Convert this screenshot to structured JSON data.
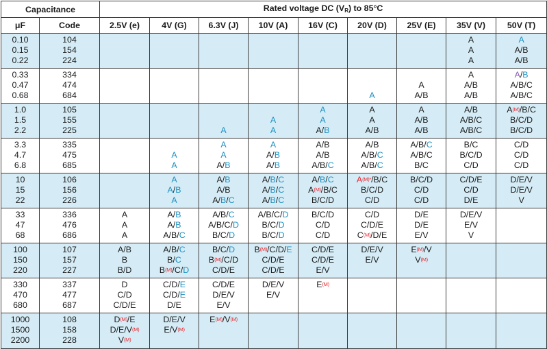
{
  "header": {
    "capacitance": "Capacitance",
    "rated_prefix": "Rated voltage DC (V",
    "rated_sub": "R",
    "rated_suffix": ") to 85°C",
    "uf": "μF",
    "code": "Code",
    "voltages": [
      "2.5V (e)",
      "4V (G)",
      "6.3V (J)",
      "10V (A)",
      "16V (C)",
      "20V (D)",
      "25V (E)",
      "35V (V)",
      "50V (T)"
    ]
  },
  "legend_colors": {
    "black": "#1a1a1a",
    "blue": "#1a90c2",
    "red": "#e8242c",
    "purple": "#8a5ab8",
    "band": "#d5ecf6"
  },
  "groups": [
    {
      "uf": [
        "0.10",
        "0.15",
        "0.22"
      ],
      "codes": [
        "104",
        "154",
        "224"
      ],
      "cols": [
        [],
        [],
        [],
        [],
        [],
        [],
        [],
        [
          "A",
          "A",
          "A"
        ],
        [
          "A",
          "A/B",
          "A/B"
        ]
      ]
    },
    {
      "uf": [
        "0.33",
        "0.47",
        "0.68"
      ],
      "codes": [
        "334",
        "474",
        "684"
      ],
      "cols": [
        [],
        [],
        [],
        [],
        [],
        [
          "",
          "",
          "A"
        ],
        [
          "",
          "A",
          "A/B"
        ],
        [
          "A",
          "A/B",
          "A/B"
        ],
        [
          "A/B",
          "A/B/C",
          "A/B/C"
        ]
      ]
    },
    {
      "uf": [
        "1.0",
        "1.5",
        "2.2"
      ],
      "codes": [
        "105",
        "155",
        "225"
      ],
      "cols": [
        [],
        [],
        [
          "",
          "",
          "A"
        ],
        [
          "",
          "A",
          "A"
        ],
        [
          "A",
          "A",
          "A/B"
        ],
        [
          "A",
          "A",
          "A/B"
        ],
        [
          "A",
          "A/B",
          "A/B"
        ],
        [
          "A/B",
          "A/B/C",
          "A/B/C"
        ],
        [
          "A(M)/B/C",
          "B/C/D",
          "B/C/D"
        ]
      ]
    },
    {
      "uf": [
        "3.3",
        "4.7",
        "6.8"
      ],
      "codes": [
        "335",
        "475",
        "685"
      ],
      "cols": [
        [],
        [
          "",
          "A",
          "A"
        ],
        [
          "A",
          "A",
          "A/B"
        ],
        [
          "A",
          "A/B",
          "A/B"
        ],
        [
          "A/B",
          "A/B",
          "A/B/C"
        ],
        [
          "A/B",
          "A/B/C",
          "A/B/C"
        ],
        [
          "A/B/C",
          "A/B/C",
          "B/C"
        ],
        [
          "B/C",
          "B/C/D",
          "C/D"
        ],
        [
          "C/D",
          "C/D",
          "C/D"
        ]
      ]
    },
    {
      "uf": [
        "10",
        "15",
        "22"
      ],
      "codes": [
        "106",
        "156",
        "226"
      ],
      "cols": [
        [],
        [
          "A",
          "A/B",
          "A"
        ],
        [
          "A/B",
          "A/B",
          "A/B/C"
        ],
        [
          "A/B/C",
          "A/B/C",
          "A/B/C"
        ],
        [
          "A/B/C",
          "A(M)/B/C",
          "B/C/D"
        ],
        [
          "A(M)*/B/C",
          "B/C/D",
          "C/D"
        ],
        [
          "B/C/D",
          "C/D",
          "C/D"
        ],
        [
          "C/D/E",
          "C/D",
          "D/E"
        ],
        [
          "D/E/V",
          "D/E/V",
          "V"
        ]
      ]
    },
    {
      "uf": [
        "33",
        "47",
        "68"
      ],
      "codes": [
        "336",
        "476",
        "686"
      ],
      "cols": [
        [
          "A",
          "A",
          "A"
        ],
        [
          "A/B",
          "A/B",
          "A/B/C"
        ],
        [
          "A/B/C",
          "A/B/C/D",
          "B/C/D"
        ],
        [
          "A/B/C/D",
          "B/C/D",
          "B/C/D"
        ],
        [
          "B/C/D",
          "C/D",
          "C/D"
        ],
        [
          "C/D",
          "C/D/E",
          "C(M)/D/E"
        ],
        [
          "D/E",
          "D/E",
          "E/V"
        ],
        [
          "D/E/V",
          "E/V",
          "V"
        ],
        []
      ]
    },
    {
      "uf": [
        "100",
        "150",
        "220"
      ],
      "codes": [
        "107",
        "157",
        "227"
      ],
      "cols": [
        [
          "A/B",
          "B",
          "B/D"
        ],
        [
          "A/B/C",
          "B/C",
          "B(M)/C/D"
        ],
        [
          "B/C/D",
          "B(M)/C/D",
          "C/D/E"
        ],
        [
          "B(M)/C/D/E",
          "C/D/E",
          "C/D/E"
        ],
        [
          "C/D/E",
          "C/D/E",
          "E/V"
        ],
        [
          "D/E/V",
          "E/V",
          ""
        ],
        [
          "E(M)/V",
          "V(M)",
          ""
        ],
        [],
        []
      ]
    },
    {
      "uf": [
        "330",
        "470",
        "680"
      ],
      "codes": [
        "337",
        "477",
        "687"
      ],
      "cols": [
        [
          "D",
          "C/D",
          "C/D/E"
        ],
        [
          "C/D/E",
          "C/D/E",
          "D/E"
        ],
        [
          "C/D/E",
          "D/E/V",
          "E/V"
        ],
        [
          "D/E/V",
          "E/V",
          ""
        ],
        [
          "E(M)",
          "",
          ""
        ],
        [],
        [],
        [],
        []
      ]
    },
    {
      "uf": [
        "1000",
        "1500",
        "2200"
      ],
      "codes": [
        "108",
        "158",
        "228"
      ],
      "cols": [
        [
          "D(M)/E",
          "D/E/V(M)",
          "V(M)"
        ],
        [
          "D/E/V",
          "E/V(M)",
          ""
        ],
        [
          "E(M)/V(M)",
          "",
          ""
        ],
        [],
        [],
        [],
        [],
        [],
        []
      ]
    }
  ]
}
